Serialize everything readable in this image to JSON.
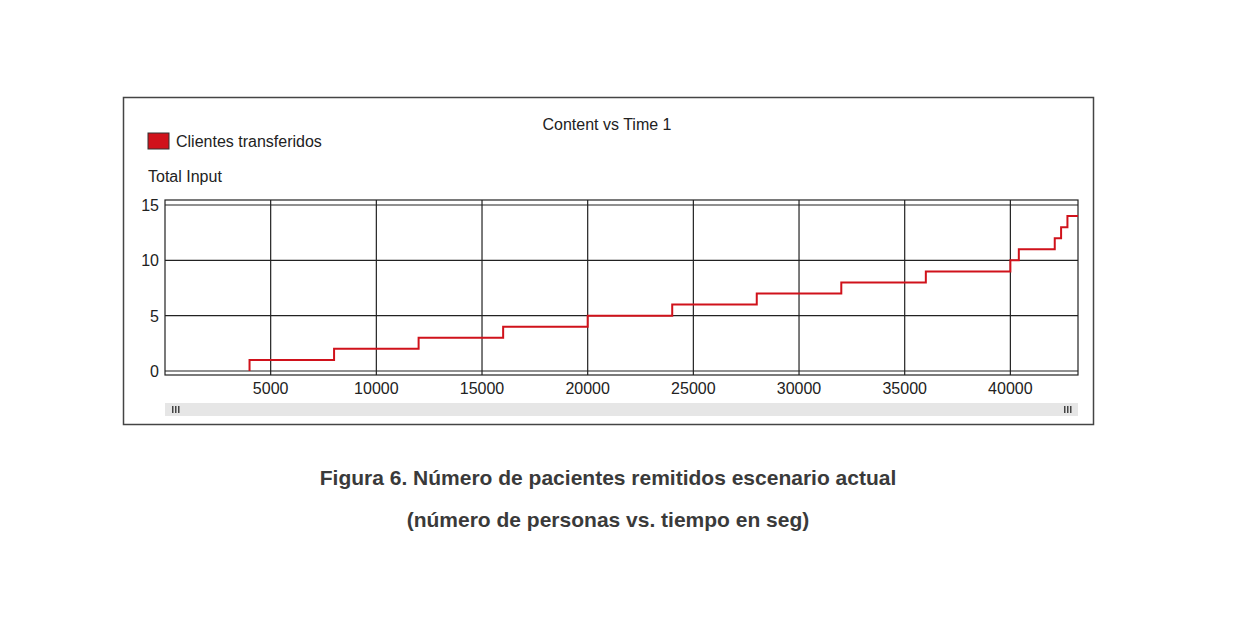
{
  "chart_data": {
    "type": "line",
    "title": "Content vs Time 1",
    "y_label": "Total Input",
    "caption": [
      "Figura 6. Número de pacientes remitidos escenario actual",
      "(número de personas vs. tiempo en seg)"
    ],
    "line_style": "step",
    "grid": true,
    "legend": "top-left",
    "series": [
      {
        "name": "Clientes transferidos",
        "color": "#d0121b",
        "x": [
          4000,
          4000,
          8000,
          12000,
          16000,
          20000,
          24000,
          28000,
          32000,
          36000,
          40000,
          40400,
          42100,
          42400,
          42700,
          43200
        ],
        "values": [
          0,
          1,
          2,
          3,
          4,
          5,
          6,
          7,
          8,
          9,
          10,
          11,
          12,
          13,
          14,
          14
        ]
      }
    ],
    "xlim": [
      0,
      43200
    ],
    "xticks": [
      5000,
      10000,
      15000,
      20000,
      25000,
      30000,
      35000,
      40000
    ],
    "ylim": [
      0,
      15
    ],
    "yticks": [
      0,
      5,
      10,
      15
    ]
  }
}
